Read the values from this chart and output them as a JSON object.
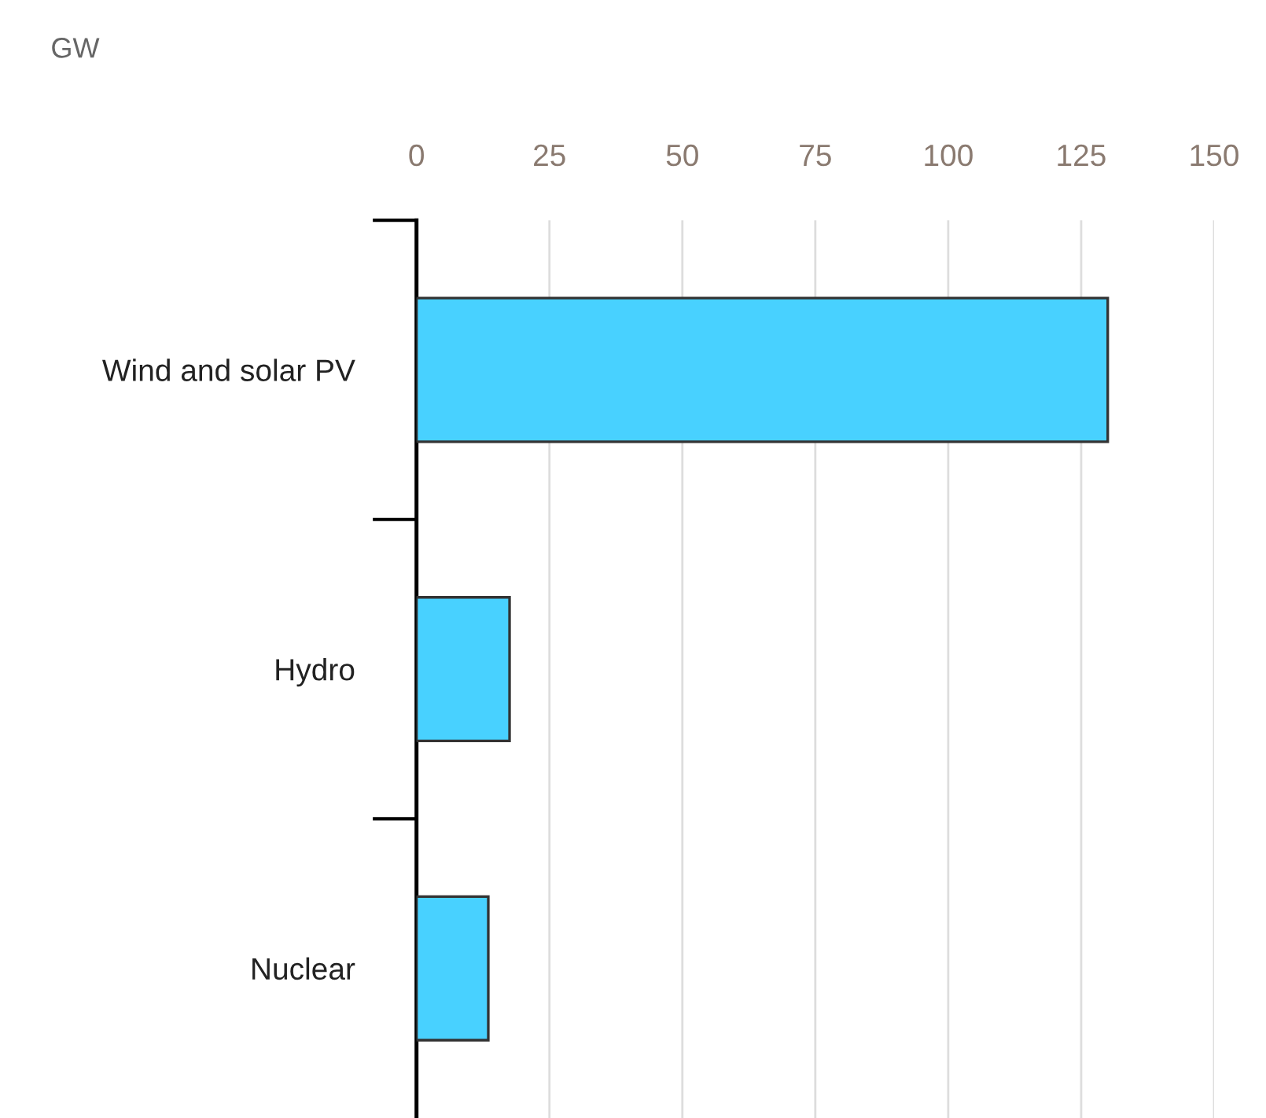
{
  "chart_data": {
    "type": "bar",
    "orientation": "horizontal",
    "title": "GW",
    "categories": [
      "Wind and solar PV",
      "Hydro",
      "Nuclear"
    ],
    "values": [
      130,
      17.5,
      13.5
    ],
    "color": "#48d1ff",
    "xlim": [
      0,
      150
    ],
    "xticks": [
      0,
      25,
      50,
      75,
      100,
      125,
      150
    ],
    "grid": "x"
  }
}
